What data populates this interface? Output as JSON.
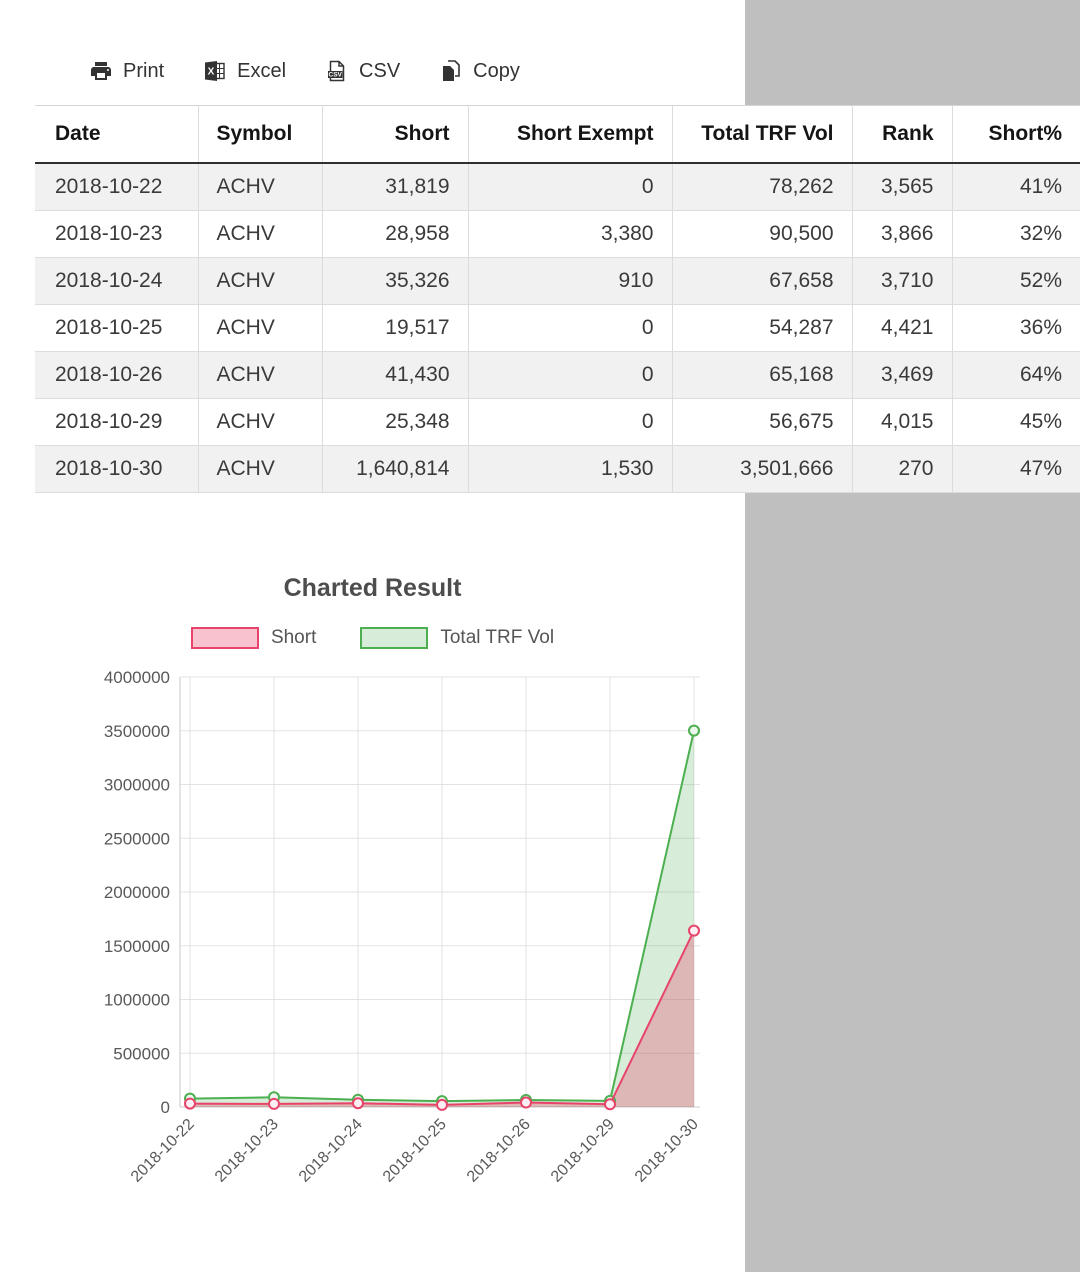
{
  "page": {
    "panel_color": "#ffffff",
    "gutter_color": "#bfbfbf"
  },
  "toolbar": {
    "buttons": [
      {
        "label": "Print",
        "icon": "printer-icon"
      },
      {
        "label": "Excel",
        "icon": "excel-file-icon"
      },
      {
        "label": "CSV",
        "icon": "csv-file-icon"
      },
      {
        "label": "Copy",
        "icon": "copy-icon"
      }
    ]
  },
  "table": {
    "columns": [
      {
        "label": "Date",
        "align": "left"
      },
      {
        "label": "Symbol",
        "align": "left"
      },
      {
        "label": "Short",
        "align": "right"
      },
      {
        "label": "Short Exempt",
        "align": "right"
      },
      {
        "label": "Total TRF Vol",
        "align": "right"
      },
      {
        "label": "Rank",
        "align": "right"
      },
      {
        "label": "Short%",
        "align": "right"
      }
    ],
    "rows": [
      [
        "2018-10-22",
        "ACHV",
        "31,819",
        "0",
        "78,262",
        "3,565",
        "41%"
      ],
      [
        "2018-10-23",
        "ACHV",
        "28,958",
        "3,380",
        "90,500",
        "3,866",
        "32%"
      ],
      [
        "2018-10-24",
        "ACHV",
        "35,326",
        "910",
        "67,658",
        "3,710",
        "52%"
      ],
      [
        "2018-10-25",
        "ACHV",
        "19,517",
        "0",
        "54,287",
        "4,421",
        "36%"
      ],
      [
        "2018-10-26",
        "ACHV",
        "41,430",
        "0",
        "65,168",
        "3,469",
        "64%"
      ],
      [
        "2018-10-29",
        "ACHV",
        "25,348",
        "0",
        "56,675",
        "4,015",
        "45%"
      ],
      [
        "2018-10-30",
        "ACHV",
        "1,640,814",
        "1,530",
        "3,501,666",
        "270",
        "47%"
      ]
    ]
  },
  "chart_data": {
    "type": "area",
    "title": "Charted Result",
    "categories": [
      "2018-10-22",
      "2018-10-23",
      "2018-10-24",
      "2018-10-25",
      "2018-10-26",
      "2018-10-29",
      "2018-10-30"
    ],
    "series": [
      {
        "name": "Short",
        "color": "#e8436b",
        "fill": "rgba(232,67,107,0.32)",
        "values": [
          31819,
          28958,
          35326,
          19517,
          41430,
          25348,
          1640814
        ]
      },
      {
        "name": "Total TRF Vol",
        "color": "#4caf50",
        "fill": "rgba(76,175,80,0.22)",
        "values": [
          78262,
          90500,
          67658,
          54287,
          65168,
          56675,
          3501666
        ]
      }
    ],
    "ylim": [
      0,
      4000000
    ],
    "ytick_step": 500000,
    "ytick_labels": [
      "0",
      "500000",
      "1000000",
      "1500000",
      "2000000",
      "2500000",
      "3000000",
      "3500000",
      "4000000"
    ],
    "grid": true,
    "legend_position": "top"
  }
}
